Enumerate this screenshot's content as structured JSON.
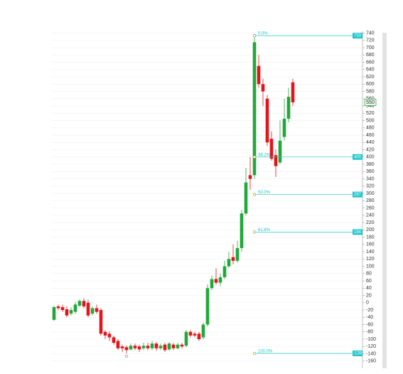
{
  "chart_data": {
    "type": "candlestick",
    "up_color": "#22a83a",
    "down_color": "#e3151b",
    "fib_color": "#22c6cc",
    "grid": true,
    "open": [
      -47,
      -10,
      -12,
      -18,
      -30,
      -25,
      -8,
      5,
      0,
      -30,
      -15,
      -20,
      -80,
      -85,
      -95,
      -105,
      -120,
      -122,
      -128,
      -118,
      -120,
      -125,
      -118,
      -125,
      -112,
      -125,
      -115,
      -128,
      -115,
      -125,
      -115,
      -118,
      -80,
      -85,
      -85,
      -95,
      -60,
      40,
      65,
      55,
      70,
      100,
      125,
      115,
      150,
      245,
      350,
      350,
      650,
      600,
      560,
      450,
      405,
      385,
      455,
      505,
      605
    ],
    "high": [
      -8,
      -5,
      -5,
      -10,
      -12,
      2,
      10,
      12,
      8,
      -10,
      -5,
      -15,
      -75,
      -78,
      -90,
      -100,
      -115,
      -118,
      -112,
      -112,
      -115,
      -110,
      -110,
      -105,
      -108,
      -112,
      -110,
      -108,
      -110,
      -110,
      -110,
      -75,
      -75,
      -80,
      -80,
      -55,
      50,
      75,
      95,
      80,
      115,
      140,
      160,
      170,
      255,
      370,
      400,
      733,
      680,
      615,
      570,
      470,
      420,
      500,
      560,
      590,
      615
    ],
    "low": [
      -50,
      -20,
      -25,
      -40,
      -35,
      -30,
      -12,
      -15,
      -40,
      -35,
      -30,
      -90,
      -100,
      -105,
      -115,
      -130,
      -135,
      -139,
      -132,
      -130,
      -135,
      -130,
      -130,
      -130,
      -132,
      -130,
      -135,
      -132,
      -130,
      -128,
      -125,
      -122,
      -95,
      -95,
      -105,
      -100,
      -65,
      35,
      50,
      45,
      65,
      95,
      105,
      110,
      140,
      240,
      310,
      340,
      590,
      540,
      430,
      390,
      345,
      380,
      445,
      495,
      540
    ],
    "close": [
      -12,
      -15,
      -20,
      -35,
      -20,
      -5,
      5,
      -10,
      -35,
      -15,
      -25,
      -85,
      -90,
      -95,
      -110,
      -125,
      -125,
      -130,
      -118,
      -125,
      -128,
      -118,
      -125,
      -112,
      -125,
      -118,
      -130,
      -112,
      -125,
      -115,
      -120,
      -80,
      -90,
      -90,
      -100,
      -60,
      40,
      65,
      55,
      70,
      100,
      120,
      115,
      150,
      245,
      330,
      340,
      715,
      600,
      580,
      440,
      395,
      375,
      445,
      505,
      565,
      550
    ],
    "last": 550,
    "fib_levels": [
      {
        "ratio": "0.0%",
        "value": 733
      },
      {
        "ratio": "38.2%",
        "value": 400
      },
      {
        "ratio": "50.0%",
        "value": 297
      },
      {
        "ratio": "61.8%",
        "value": 194
      },
      {
        "ratio": "100.0%",
        "value": -139
      }
    ],
    "ylim": [
      -180,
      745
    ],
    "yticks": [
      -160,
      -140,
      -120,
      -100,
      -80,
      -60,
      -40,
      -20,
      0,
      20,
      40,
      60,
      80,
      100,
      120,
      140,
      160,
      180,
      200,
      220,
      240,
      260,
      280,
      300,
      320,
      340,
      360,
      380,
      400,
      420,
      440,
      460,
      480,
      500,
      520,
      540,
      560,
      580,
      600,
      620,
      640,
      660,
      680,
      700,
      720,
      740
    ]
  }
}
